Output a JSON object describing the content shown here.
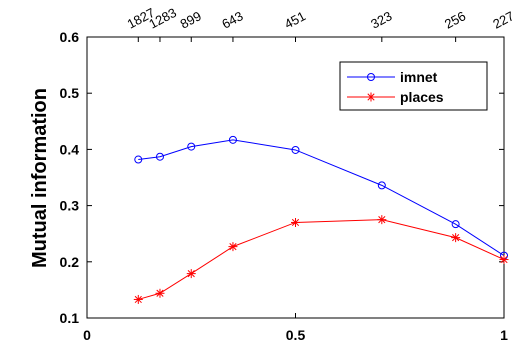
{
  "chart_data": {
    "type": "line",
    "ylabel": "Mutual information",
    "xlim": [
      0,
      1
    ],
    "ylim": [
      0.1,
      0.6
    ],
    "x_ticks": [
      "0",
      "0.5",
      "1"
    ],
    "y_ticks": [
      "0.1",
      "0.2",
      "0.3",
      "0.4",
      "0.5",
      "0.6"
    ],
    "x": [
      0.123,
      0.175,
      0.25,
      0.35,
      0.5,
      0.707,
      0.884,
      1.0
    ],
    "top_axis_labels": [
      "1827",
      "1283",
      "899",
      "643",
      "451",
      "323",
      "256",
      "227"
    ],
    "series": [
      {
        "name": "imnet",
        "color": "#0000ff",
        "marker": "circle",
        "values": [
          0.382,
          0.387,
          0.405,
          0.417,
          0.399,
          0.336,
          0.267,
          0.211
        ]
      },
      {
        "name": "places",
        "color": "#ff0000",
        "marker": "star",
        "values": [
          0.133,
          0.144,
          0.179,
          0.227,
          0.27,
          0.275,
          0.243,
          0.204
        ]
      }
    ],
    "legend_position": "top-right",
    "grid": false
  }
}
